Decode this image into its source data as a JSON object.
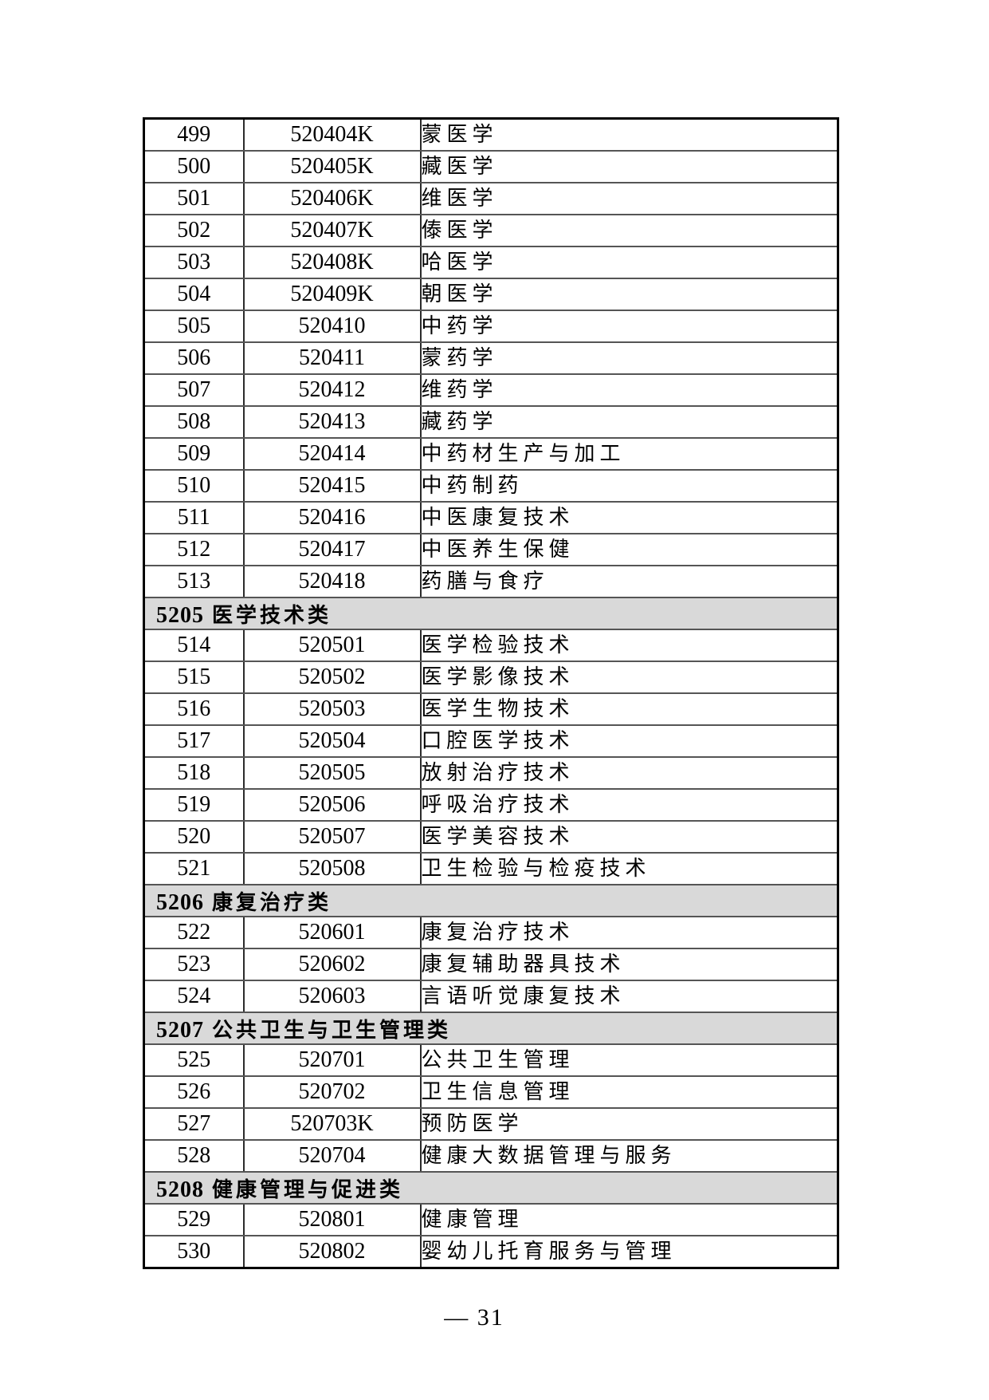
{
  "document": {
    "footer": {
      "page_number": "— 31"
    }
  },
  "colors": {
    "page_bg": "#ffffff",
    "text": "#000000",
    "section_bg": "#d9d9d9",
    "grid": "#555555",
    "outer_border": "#000000"
  },
  "table": {
    "rows": [
      {
        "no": "499",
        "code": "520404K",
        "name": "蒙医学"
      },
      {
        "no": "500",
        "code": "520405K",
        "name": "藏医学"
      },
      {
        "no": "501",
        "code": "520406K",
        "name": "维医学"
      },
      {
        "no": "502",
        "code": "520407K",
        "name": "傣医学"
      },
      {
        "no": "503",
        "code": "520408K",
        "name": "哈医学"
      },
      {
        "no": "504",
        "code": "520409K",
        "name": "朝医学"
      },
      {
        "no": "505",
        "code": "520410",
        "name": "中药学"
      },
      {
        "no": "506",
        "code": "520411",
        "name": "蒙药学"
      },
      {
        "no": "507",
        "code": "520412",
        "name": "维药学"
      },
      {
        "no": "508",
        "code": "520413",
        "name": "藏药学"
      },
      {
        "no": "509",
        "code": "520414",
        "name": "中药材生产与加工"
      },
      {
        "no": "510",
        "code": "520415",
        "name": "中药制药"
      },
      {
        "no": "511",
        "code": "520416",
        "name": "中医康复技术"
      },
      {
        "no": "512",
        "code": "520417",
        "name": "中医养生保健"
      },
      {
        "no": "513",
        "code": "520418",
        "name": "药膳与食疗"
      },
      {
        "type": "section",
        "code": "5205",
        "title": "医学技术类"
      },
      {
        "no": "514",
        "code": "520501",
        "name": "医学检验技术"
      },
      {
        "no": "515",
        "code": "520502",
        "name": "医学影像技术"
      },
      {
        "no": "516",
        "code": "520503",
        "name": "医学生物技术"
      },
      {
        "no": "517",
        "code": "520504",
        "name": "口腔医学技术"
      },
      {
        "no": "518",
        "code": "520505",
        "name": "放射治疗技术"
      },
      {
        "no": "519",
        "code": "520506",
        "name": "呼吸治疗技术"
      },
      {
        "no": "520",
        "code": "520507",
        "name": "医学美容技术"
      },
      {
        "no": "521",
        "code": "520508",
        "name": "卫生检验与检疫技术"
      },
      {
        "type": "section",
        "code": "5206",
        "title": "康复治疗类"
      },
      {
        "no": "522",
        "code": "520601",
        "name": "康复治疗技术"
      },
      {
        "no": "523",
        "code": "520602",
        "name": "康复辅助器具技术"
      },
      {
        "no": "524",
        "code": "520603",
        "name": "言语听觉康复技术"
      },
      {
        "type": "section",
        "code": "5207",
        "title": "公共卫生与卫生管理类"
      },
      {
        "no": "525",
        "code": "520701",
        "name": "公共卫生管理"
      },
      {
        "no": "526",
        "code": "520702",
        "name": "卫生信息管理"
      },
      {
        "no": "527",
        "code": "520703K",
        "name": "预防医学"
      },
      {
        "no": "528",
        "code": "520704",
        "name": "健康大数据管理与服务"
      },
      {
        "type": "section",
        "code": "5208",
        "title": "健康管理与促进类"
      },
      {
        "no": "529",
        "code": "520801",
        "name": "健康管理"
      },
      {
        "no": "530",
        "code": "520802",
        "name": "婴幼儿托育服务与管理"
      }
    ]
  }
}
